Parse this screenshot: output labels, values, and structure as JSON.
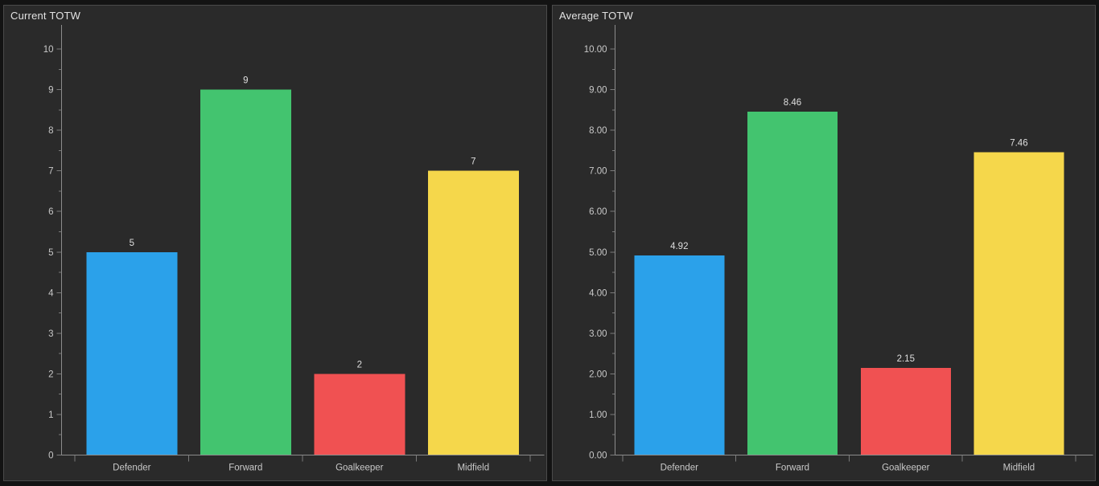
{
  "colors": {
    "page_bg": "#131313",
    "panel_bg": "#2A2A2A",
    "panel_border": "#4A4A4A",
    "title_text": "#E2E2E2",
    "tick_text": "#C9C9C9",
    "value_text": "#DFDFDF",
    "axis_line": "#8C8C8C",
    "tick_mark": "#7A7A7A",
    "bar_blue": "#2BA1EA",
    "bar_green": "#43C46F",
    "bar_red": "#F05152",
    "bar_yellow": "#F5D74B"
  },
  "chart_data": [
    {
      "type": "bar",
      "title": "Current TOTW",
      "categories": [
        "Defender",
        "Forward",
        "Goalkeeper",
        "Midfield"
      ],
      "values": [
        5,
        9,
        2,
        7
      ],
      "value_labels": [
        "5",
        "9",
        "2",
        "7"
      ],
      "bar_colors": [
        "#2BA1EA",
        "#43C46F",
        "#F05152",
        "#F5D74B"
      ],
      "xlabel": "",
      "ylabel": "",
      "ylim": [
        0,
        10
      ],
      "y_major_step": 1,
      "y_minor_step": 0.5,
      "y_tick_labels": [
        "0",
        "1",
        "2",
        "3",
        "4",
        "5",
        "6",
        "7",
        "8",
        "9",
        "10"
      ],
      "grid": "off",
      "legend": "none"
    },
    {
      "type": "bar",
      "title": "Average TOTW",
      "categories": [
        "Defender",
        "Forward",
        "Goalkeeper",
        "Midfield"
      ],
      "values": [
        4.92,
        8.46,
        2.15,
        7.46
      ],
      "value_labels": [
        "4.92",
        "8.46",
        "2.15",
        "7.46"
      ],
      "bar_colors": [
        "#2BA1EA",
        "#43C46F",
        "#F05152",
        "#F5D74B"
      ],
      "xlabel": "",
      "ylabel": "",
      "ylim": [
        0,
        10
      ],
      "y_major_step": 1,
      "y_minor_step": 0.5,
      "y_tick_labels": [
        "0.00",
        "1.00",
        "2.00",
        "3.00",
        "4.00",
        "5.00",
        "6.00",
        "7.00",
        "8.00",
        "9.00",
        "10.00"
      ],
      "grid": "off",
      "legend": "none"
    }
  ]
}
